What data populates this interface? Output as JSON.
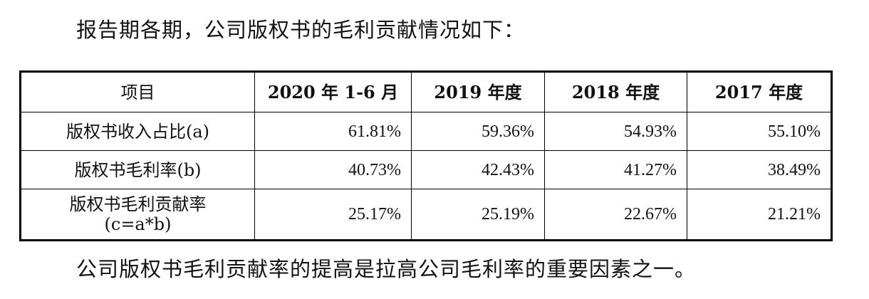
{
  "intro_text": "报告期各期，公司版权书的毛利贡献情况如下：",
  "table": {
    "headers": [
      "项目",
      "2020 年 1-6 月",
      "2019 年度",
      "2018 年度",
      "2017 年度"
    ],
    "rows": [
      {
        "label": "版权书收入占比(a)",
        "values": [
          "61.81%",
          "59.36%",
          "54.93%",
          "55.10%"
        ]
      },
      {
        "label": "版权书毛利率(b)",
        "values": [
          "40.73%",
          "42.43%",
          "41.27%",
          "38.49%"
        ]
      },
      {
        "label_line1": "版权书毛利贡献率",
        "label_line2": "(c=a*b)",
        "values": [
          "25.17%",
          "25.19%",
          "22.67%",
          "21.21%"
        ]
      }
    ]
  },
  "outro_text": "公司版权书毛利贡献率的提高是拉高公司毛利率的重要因素之一。"
}
